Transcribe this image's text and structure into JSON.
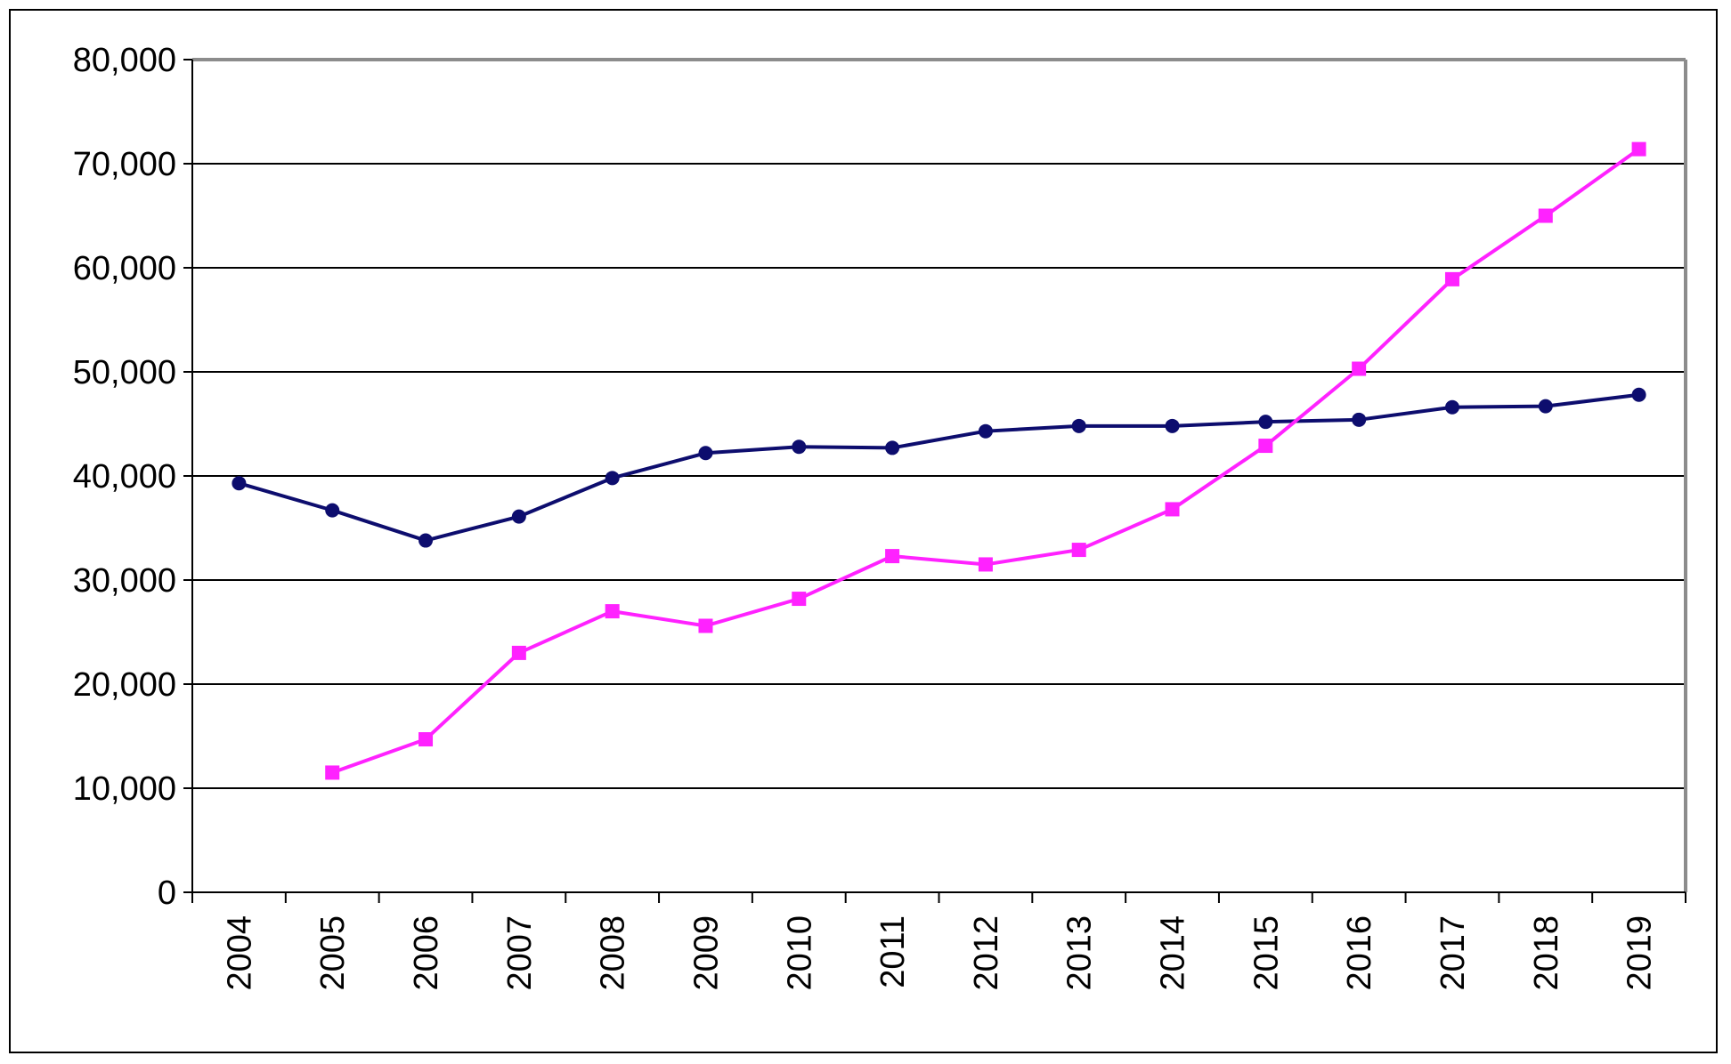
{
  "chart_data": {
    "type": "line",
    "title": "",
    "xlabel": "",
    "ylabel": "",
    "categories": [
      "2004",
      "2005",
      "2006",
      "2007",
      "2008",
      "2009",
      "2010",
      "2011",
      "2012",
      "2013",
      "2014",
      "2015",
      "2016",
      "2017",
      "2018",
      "2019"
    ],
    "y_tick_labels": [
      "0",
      "10,000",
      "20,000",
      "30,000",
      "40,000",
      "50,000",
      "60,000",
      "70,000",
      "80,000"
    ],
    "y_ticks": [
      0,
      10000,
      20000,
      30000,
      40000,
      50000,
      60000,
      70000,
      80000
    ],
    "ylim": [
      0,
      80000
    ],
    "grid": true,
    "legend": "none",
    "series": [
      {
        "color": "#0d0d6e",
        "marker": "circle",
        "values": [
          39300,
          36700,
          33800,
          36100,
          39800,
          42200,
          42800,
          42700,
          44300,
          44800,
          44800,
          45200,
          45400,
          46600,
          46700,
          47800
        ]
      },
      {
        "color": "#ff22ff",
        "marker": "square",
        "values": [
          null,
          11500,
          14700,
          23000,
          27000,
          25600,
          28200,
          32300,
          31500,
          32900,
          36800,
          42900,
          50300,
          58900,
          65000,
          71400
        ]
      }
    ]
  }
}
